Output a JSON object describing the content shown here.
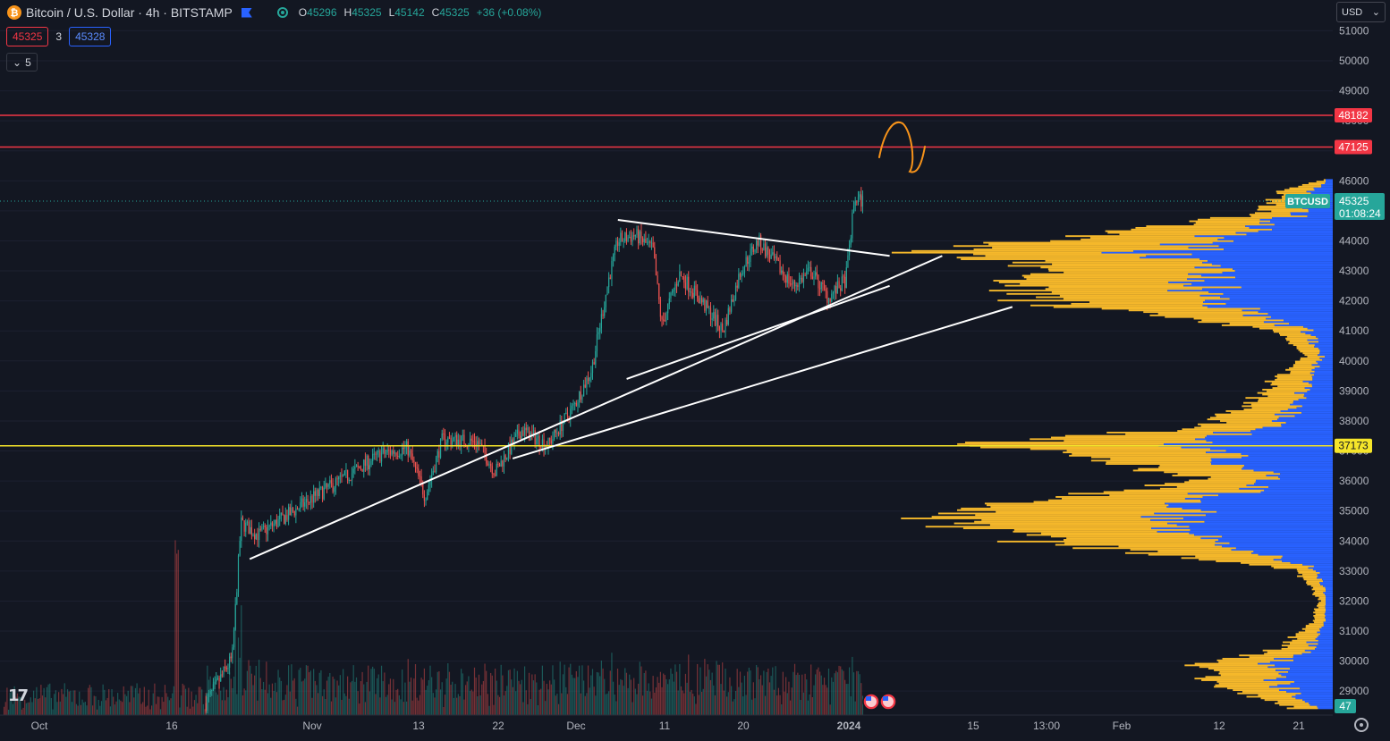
{
  "header": {
    "symbol_icon": "bitcoin-icon",
    "title": "Bitcoin / U.S. Dollar · 4h · BITSTAMP",
    "ohlc": [
      {
        "key": "O",
        "value": "45296"
      },
      {
        "key": "H",
        "value": "45325"
      },
      {
        "key": "L",
        "value": "45142"
      },
      {
        "key": "C",
        "value": "45325"
      },
      {
        "key": "",
        "value": "+36 (+0.08%)"
      }
    ],
    "sell_price": "45325",
    "spread": "3",
    "buy_price": "45328",
    "indicators_count": "5"
  },
  "currency": "USD",
  "colors": {
    "background": "#131722",
    "up": "#26a69a",
    "down": "#ef5350",
    "resistance": "#f23645",
    "support": "#f5e52a",
    "vp_up": "#f5b82b",
    "vp_down": "#2962ff",
    "trendline": "#ffffff",
    "annotation": "#f7931a"
  },
  "chart_data": {
    "type": "candlestick",
    "timeframe": "4h",
    "x_ticks": [
      "Oct",
      "16",
      "Nov",
      "13",
      "22",
      "Dec",
      "11",
      "20",
      "2024",
      "15",
      "13:00",
      "Feb",
      "12",
      "21"
    ],
    "y_ticks": [
      29000,
      30000,
      31000,
      32000,
      33000,
      34000,
      35000,
      36000,
      37000,
      38000,
      39000,
      40000,
      41000,
      42000,
      43000,
      44000,
      45000,
      46000,
      47000,
      48000,
      49000,
      50000,
      51000
    ],
    "ylim": [
      28400,
      51300
    ],
    "price_trend": [
      {
        "date": "2023-10-20",
        "price": 28600
      },
      {
        "date": "2023-10-23",
        "price": 30100
      },
      {
        "date": "2023-10-24",
        "price": 34600
      },
      {
        "date": "2023-10-26",
        "price": 34200
      },
      {
        "date": "2023-11-01",
        "price": 35400
      },
      {
        "date": "2023-11-09",
        "price": 36900
      },
      {
        "date": "2023-11-12",
        "price": 37100
      },
      {
        "date": "2023-11-14",
        "price": 35500
      },
      {
        "date": "2023-11-16",
        "price": 37400
      },
      {
        "date": "2023-11-20",
        "price": 37300
      },
      {
        "date": "2023-11-22",
        "price": 36300
      },
      {
        "date": "2023-11-25",
        "price": 37700
      },
      {
        "date": "2023-11-28",
        "price": 37200
      },
      {
        "date": "2023-12-01",
        "price": 38500
      },
      {
        "date": "2023-12-03",
        "price": 39700
      },
      {
        "date": "2023-12-05",
        "price": 42800
      },
      {
        "date": "2023-12-06",
        "price": 44000
      },
      {
        "date": "2023-12-08",
        "price": 44200
      },
      {
        "date": "2023-12-10",
        "price": 43700
      },
      {
        "date": "2023-12-11",
        "price": 41200
      },
      {
        "date": "2023-12-13",
        "price": 42900
      },
      {
        "date": "2023-12-15",
        "price": 42200
      },
      {
        "date": "2023-12-18",
        "price": 41000
      },
      {
        "date": "2023-12-20",
        "price": 43000
      },
      {
        "date": "2023-12-22",
        "price": 44000
      },
      {
        "date": "2023-12-26",
        "price": 42500
      },
      {
        "date": "2023-12-28",
        "price": 43000
      },
      {
        "date": "2023-12-30",
        "price": 42100
      },
      {
        "date": "2024-01-01",
        "price": 42700
      },
      {
        "date": "2024-01-02",
        "price": 45400
      },
      {
        "date": "2024-01-03",
        "price": 45325
      }
    ],
    "horizontal_levels": [
      {
        "price": 48182,
        "label": "48182",
        "color": "#f23645"
      },
      {
        "price": 47125,
        "label": "47125",
        "color": "#f23645"
      },
      {
        "price": 37173,
        "label": "37173",
        "color": "#f5e52a"
      }
    ],
    "last_price": {
      "symbol": "BTCUSD",
      "price": 45325,
      "label": "45325",
      "countdown": "01:08:24"
    },
    "volume_label": "47",
    "trendlines": [
      {
        "from": {
          "date": "2023-10-25",
          "price": 33400
        },
        "to": {
          "date": "2024-01-12",
          "price": 43500
        }
      },
      {
        "from": {
          "date": "2023-12-06",
          "price": 44700
        },
        "to": {
          "date": "2024-01-06",
          "price": 43500
        }
      },
      {
        "from": {
          "date": "2023-12-07",
          "price": 39400
        },
        "to": {
          "date": "2024-01-06",
          "price": 42500
        }
      },
      {
        "from": {
          "date": "2023-11-24",
          "price": 36750
        },
        "to": {
          "date": "2024-01-20",
          "price": 41800
        }
      }
    ],
    "volume_profile": {
      "colors": {
        "up": "#f5b82b",
        "down": "#2962ff"
      }
    }
  }
}
